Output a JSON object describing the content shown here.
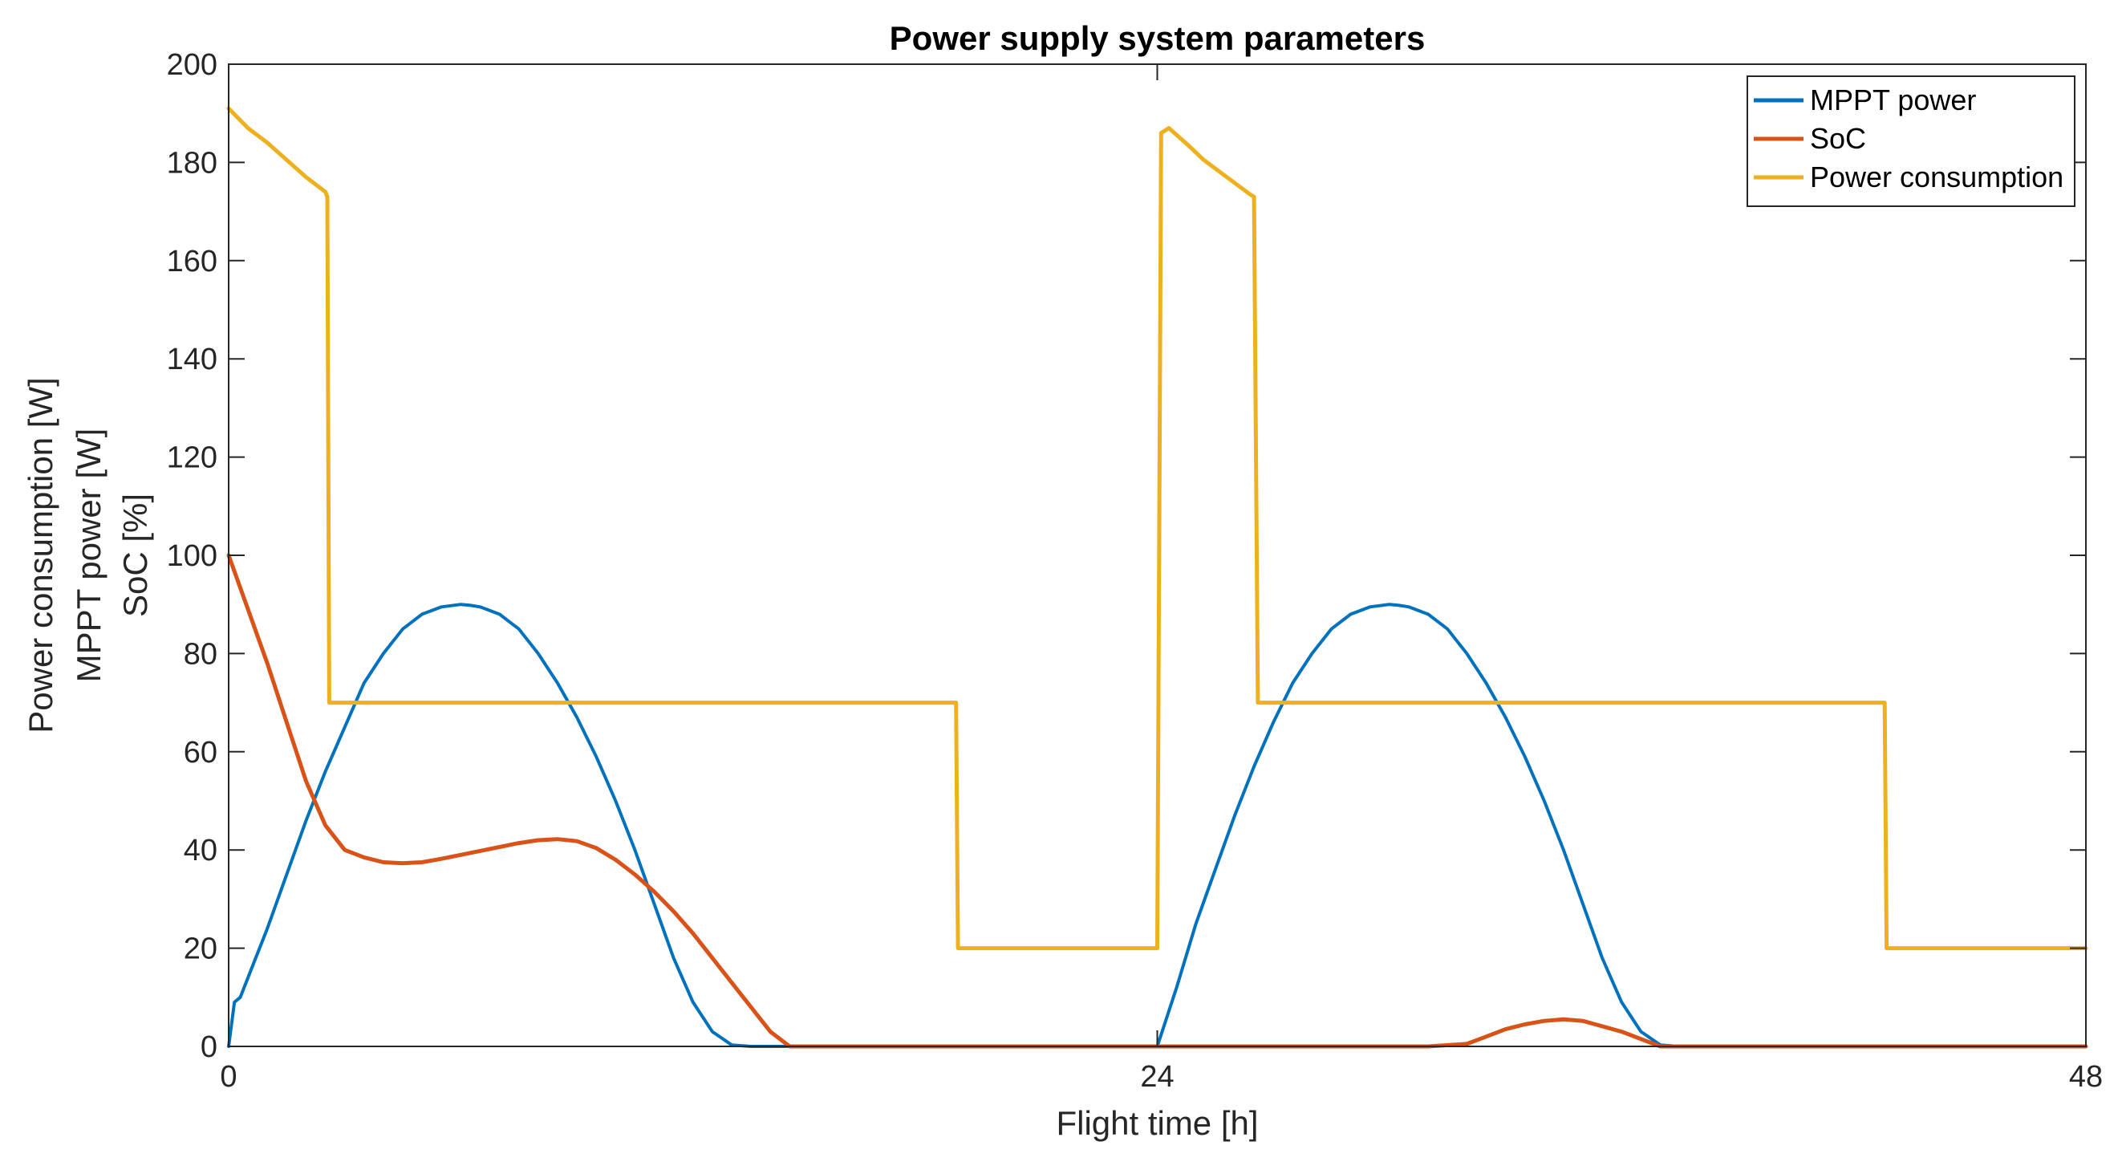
{
  "chart_data": {
    "type": "line",
    "title": "Power supply system parameters",
    "xlabel": "Flight time [h]",
    "ylabel_lines": [
      "Power consumption [W]",
      "MPPT power [W]",
      "SoC [%]"
    ],
    "xlim": [
      0,
      48
    ],
    "ylim": [
      0,
      200
    ],
    "xticks": [
      0,
      24,
      48
    ],
    "xtick_labels": [
      "0",
      "24",
      "48"
    ],
    "yticks": [
      0,
      20,
      40,
      60,
      80,
      100,
      120,
      140,
      160,
      180,
      200
    ],
    "ytick_labels": [
      "0",
      "20",
      "40",
      "60",
      "80",
      "100",
      "120",
      "140",
      "160",
      "180",
      "200"
    ],
    "grid": false,
    "legend_position": "top-right",
    "colors": {
      "axis": "#262626",
      "background": "#ffffff"
    },
    "series": [
      {
        "name": "MPPT power",
        "color": "#0072BD",
        "x": [
          0,
          0.15,
          0.3,
          0.6,
          1,
          1.5,
          2,
          2.5,
          3,
          3.5,
          4,
          4.5,
          5,
          5.5,
          6,
          6.25,
          6.5,
          7,
          7.5,
          8,
          8.5,
          9,
          9.5,
          10,
          10.5,
          11,
          11.5,
          12,
          12.5,
          13,
          13.5,
          14,
          14.5,
          15,
          16,
          17,
          18,
          19,
          20,
          21,
          22,
          23,
          24,
          24.5,
          25,
          25.5,
          26,
          26.5,
          27,
          27.5,
          28,
          28.5,
          29,
          29.5,
          30,
          30.25,
          30.5,
          31,
          31.5,
          32,
          32.5,
          33,
          33.5,
          34,
          34.5,
          35,
          35.5,
          36,
          36.5,
          37,
          37.5,
          38,
          39,
          40,
          41,
          42,
          43,
          44,
          45,
          46,
          47,
          48
        ],
        "y": [
          0,
          9,
          10,
          16,
          24,
          35,
          46,
          56,
          65,
          74,
          80,
          85,
          88,
          89.5,
          90,
          89.8,
          89.5,
          88,
          85,
          80,
          74,
          67,
          59,
          50,
          40,
          29,
          18,
          9,
          3,
          0.3,
          0,
          0,
          0,
          0,
          0,
          0,
          0,
          0,
          0,
          0,
          0,
          0,
          0,
          12,
          25,
          36,
          47,
          57,
          66,
          74,
          80,
          85,
          88,
          89.5,
          90,
          89.8,
          89.5,
          88,
          85,
          80,
          74,
          67,
          59,
          50,
          40,
          29,
          18,
          9,
          3,
          0.3,
          0,
          0,
          0,
          0,
          0,
          0,
          0,
          0,
          0,
          0,
          0,
          0
        ]
      },
      {
        "name": "SoC",
        "color": "#D95319",
        "x": [
          0,
          0.5,
          1,
          1.5,
          2,
          2.5,
          3,
          3.5,
          4,
          4.5,
          5,
          5.5,
          6,
          6.5,
          7,
          7.5,
          8,
          8.5,
          9,
          9.5,
          10,
          10.5,
          11,
          11.5,
          12,
          12.5,
          13,
          13.5,
          14,
          14.5,
          15,
          16,
          17,
          18,
          19,
          20,
          21,
          22,
          23,
          24,
          25,
          26,
          27,
          28,
          29,
          30,
          31,
          32,
          32.5,
          33,
          33.5,
          34,
          34.5,
          35,
          36,
          37,
          38,
          39,
          40,
          41,
          42,
          43,
          44,
          45,
          46,
          47,
          48
        ],
        "y": [
          100,
          89,
          78,
          66,
          54,
          45,
          40,
          38.5,
          37.5,
          37.3,
          37.5,
          38.2,
          39,
          39.8,
          40.6,
          41.4,
          42,
          42.2,
          41.8,
          40.4,
          38,
          35,
          31.5,
          27.5,
          23,
          18,
          13,
          8,
          3,
          0,
          0,
          0,
          0,
          0,
          0,
          0,
          0,
          0,
          0,
          0,
          0,
          0,
          0,
          0,
          0,
          0,
          0,
          0.5,
          2,
          3.5,
          4.5,
          5.2,
          5.5,
          5.2,
          3,
          0,
          0,
          0,
          0,
          0,
          0,
          0,
          0,
          0,
          0,
          0,
          0
        ]
      },
      {
        "name": "Power consumption",
        "color": "#EDB120",
        "x": [
          0,
          0.5,
          1,
          1.5,
          2,
          2.5,
          2.55,
          2.6,
          18.8,
          18.85,
          21.4,
          21.5,
          24.0,
          24.1,
          24.3,
          24.8,
          25.2,
          25.8,
          26.4,
          26.5,
          26.6,
          42.8,
          42.85,
          48
        ],
        "y": [
          191,
          187,
          184,
          180.5,
          177,
          174,
          173,
          70,
          70,
          20,
          20,
          20,
          20,
          186,
          187,
          183.5,
          180.5,
          177,
          173.5,
          173,
          70,
          70,
          20,
          20
        ]
      }
    ]
  }
}
